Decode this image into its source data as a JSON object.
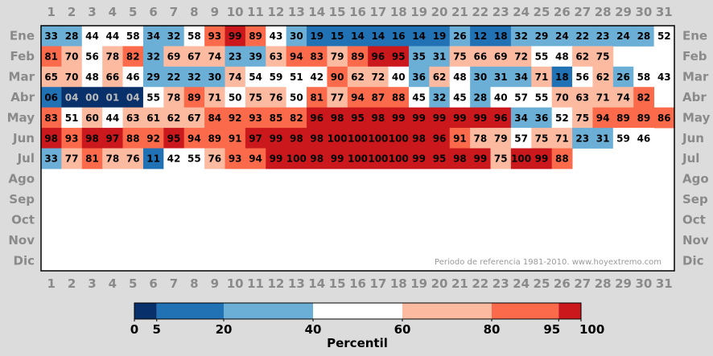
{
  "chart_data": {
    "type": "heatmap",
    "x": [
      1,
      2,
      3,
      4,
      5,
      6,
      7,
      8,
      9,
      10,
      11,
      12,
      13,
      14,
      15,
      16,
      17,
      18,
      19,
      20,
      21,
      22,
      23,
      24,
      25,
      26,
      27,
      28,
      29,
      30,
      31
    ],
    "y": [
      "Ene",
      "Feb",
      "Mar",
      "Abr",
      "May",
      "Jun",
      "Jul",
      "Ago",
      "Sep",
      "Oct",
      "Nov",
      "Dic"
    ],
    "values": [
      [
        "33",
        "28",
        "44",
        "44",
        "58",
        "34",
        "32",
        "58",
        "93",
        "99",
        "89",
        "43",
        "30",
        "19",
        "15",
        "14",
        "14",
        "16",
        "14",
        "19",
        "26",
        "12",
        "18",
        "32",
        "29",
        "24",
        "22",
        "23",
        "24",
        "28",
        "52"
      ],
      [
        "81",
        "70",
        "56",
        "78",
        "82",
        "32",
        "69",
        "67",
        "74",
        "23",
        "39",
        "63",
        "94",
        "83",
        "79",
        "89",
        "96",
        "95",
        "35",
        "31",
        "75",
        "66",
        "69",
        "72",
        "55",
        "48",
        "62",
        "75",
        null,
        null,
        null
      ],
      [
        "65",
        "70",
        "48",
        "66",
        "46",
        "29",
        "22",
        "32",
        "30",
        "74",
        "54",
        "59",
        "51",
        "42",
        "90",
        "62",
        "72",
        "40",
        "36",
        "62",
        "48",
        "30",
        "31",
        "34",
        "71",
        "18",
        "56",
        "62",
        "26",
        "58",
        "43"
      ],
      [
        "06",
        "04",
        "00",
        "01",
        "04",
        "55",
        "78",
        "89",
        "71",
        "50",
        "75",
        "76",
        "50",
        "81",
        "77",
        "94",
        "87",
        "88",
        "45",
        "32",
        "45",
        "28",
        "40",
        "57",
        "55",
        "70",
        "63",
        "71",
        "74",
        "82",
        null
      ],
      [
        "83",
        "51",
        "60",
        "44",
        "63",
        "61",
        "62",
        "67",
        "84",
        "92",
        "93",
        "85",
        "82",
        "96",
        "98",
        "95",
        "98",
        "99",
        "99",
        "99",
        "99",
        "99",
        "96",
        "34",
        "36",
        "52",
        "75",
        "94",
        "89",
        "89",
        "86"
      ],
      [
        "98",
        "93",
        "98",
        "97",
        "88",
        "92",
        "95",
        "94",
        "89",
        "91",
        "97",
        "99",
        "98",
        "98",
        "100",
        "100",
        "100",
        "100",
        "98",
        "96",
        "91",
        "78",
        "79",
        "57",
        "75",
        "71",
        "23",
        "31",
        "59",
        "46",
        null
      ],
      [
        "33",
        "77",
        "81",
        "78",
        "76",
        "11",
        "42",
        "55",
        "76",
        "93",
        "94",
        "99",
        "100",
        "98",
        "99",
        "100",
        "100",
        "100",
        "99",
        "95",
        "98",
        "99",
        "75",
        "100",
        "99",
        "88",
        null,
        null,
        null,
        null,
        null
      ],
      [
        null,
        null,
        null,
        null,
        null,
        null,
        null,
        null,
        null,
        null,
        null,
        null,
        null,
        null,
        null,
        null,
        null,
        null,
        null,
        null,
        null,
        null,
        null,
        null,
        null,
        null,
        null,
        null,
        null,
        null,
        null
      ],
      [
        null,
        null,
        null,
        null,
        null,
        null,
        null,
        null,
        null,
        null,
        null,
        null,
        null,
        null,
        null,
        null,
        null,
        null,
        null,
        null,
        null,
        null,
        null,
        null,
        null,
        null,
        null,
        null,
        null,
        null,
        null
      ],
      [
        null,
        null,
        null,
        null,
        null,
        null,
        null,
        null,
        null,
        null,
        null,
        null,
        null,
        null,
        null,
        null,
        null,
        null,
        null,
        null,
        null,
        null,
        null,
        null,
        null,
        null,
        null,
        null,
        null,
        null,
        null
      ],
      [
        null,
        null,
        null,
        null,
        null,
        null,
        null,
        null,
        null,
        null,
        null,
        null,
        null,
        null,
        null,
        null,
        null,
        null,
        null,
        null,
        null,
        null,
        null,
        null,
        null,
        null,
        null,
        null,
        null,
        null,
        null
      ],
      [
        null,
        null,
        null,
        null,
        null,
        null,
        null,
        null,
        null,
        null,
        null,
        null,
        null,
        null,
        null,
        null,
        null,
        null,
        null,
        null,
        null,
        null,
        null,
        null,
        null,
        null,
        null,
        null,
        null,
        null,
        null
      ]
    ],
    "annotation": "Periodo de referencia 1981-2010. www.hoyextremo.com",
    "colorbar": {
      "label": "Percentil",
      "ticks": [
        "0",
        "5",
        "20",
        "40",
        "60",
        "80",
        "95",
        "100"
      ],
      "bounds": [
        0,
        5,
        20,
        40,
        60,
        80,
        95,
        100
      ],
      "colors": [
        "#08306b",
        "#2171b5",
        "#6baed6",
        "#ffffff",
        "#fcbba1",
        "#fb6a4a",
        "#cb181d"
      ]
    },
    "colors": {
      "background": "#dcdcdc",
      "axis_text": "#8a8a8a",
      "empty_cell": "#ffffff",
      "annotation_text": "#999999"
    }
  }
}
